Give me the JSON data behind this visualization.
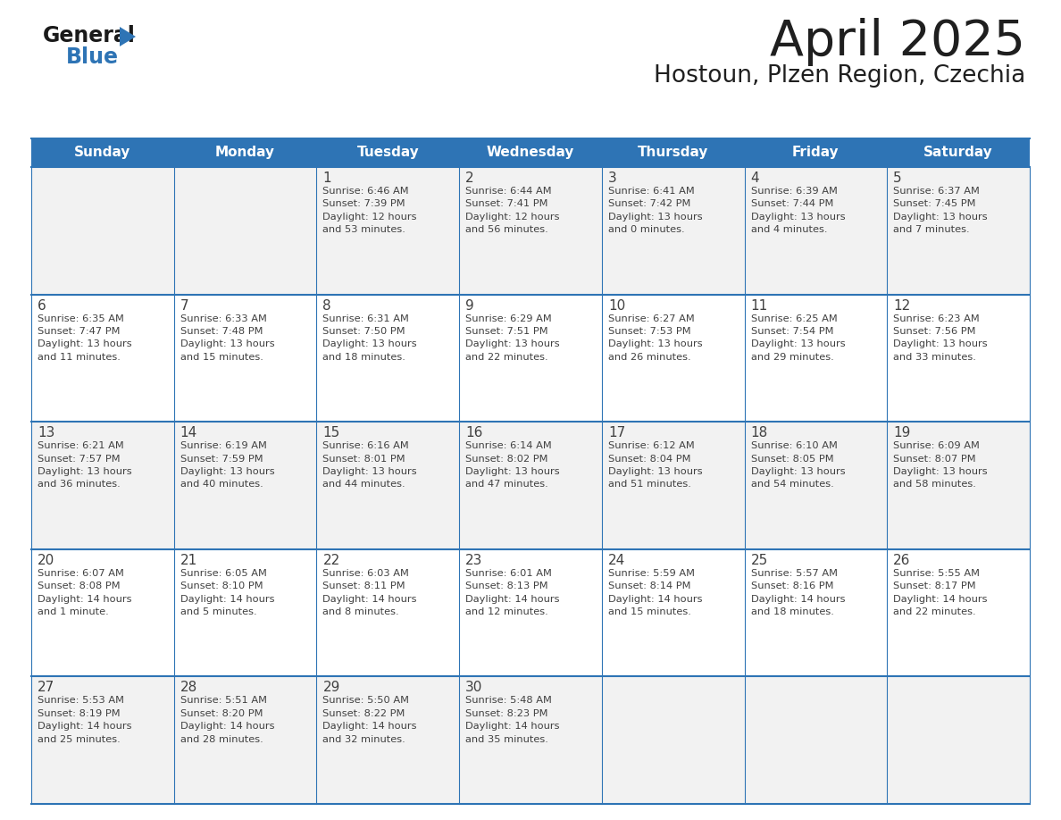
{
  "title": "April 2025",
  "subtitle": "Hostoun, Plzen Region, Czechia",
  "days_of_week": [
    "Sunday",
    "Monday",
    "Tuesday",
    "Wednesday",
    "Thursday",
    "Friday",
    "Saturday"
  ],
  "header_bg": "#2E74B5",
  "header_text_color": "#FFFFFF",
  "cell_bg_odd": "#F2F2F2",
  "cell_bg_even": "#FFFFFF",
  "border_color": "#2E74B5",
  "divider_color": "#2E74B5",
  "title_color": "#1F1F1F",
  "text_color": "#404040",
  "logo_black": "#1A1A1A",
  "logo_blue": "#2E74B5",
  "weeks": [
    [
      {
        "day": null,
        "info": null
      },
      {
        "day": null,
        "info": null
      },
      {
        "day": "1",
        "info": "Sunrise: 6:46 AM\nSunset: 7:39 PM\nDaylight: 12 hours\nand 53 minutes."
      },
      {
        "day": "2",
        "info": "Sunrise: 6:44 AM\nSunset: 7:41 PM\nDaylight: 12 hours\nand 56 minutes."
      },
      {
        "day": "3",
        "info": "Sunrise: 6:41 AM\nSunset: 7:42 PM\nDaylight: 13 hours\nand 0 minutes."
      },
      {
        "day": "4",
        "info": "Sunrise: 6:39 AM\nSunset: 7:44 PM\nDaylight: 13 hours\nand 4 minutes."
      },
      {
        "day": "5",
        "info": "Sunrise: 6:37 AM\nSunset: 7:45 PM\nDaylight: 13 hours\nand 7 minutes."
      }
    ],
    [
      {
        "day": "6",
        "info": "Sunrise: 6:35 AM\nSunset: 7:47 PM\nDaylight: 13 hours\nand 11 minutes."
      },
      {
        "day": "7",
        "info": "Sunrise: 6:33 AM\nSunset: 7:48 PM\nDaylight: 13 hours\nand 15 minutes."
      },
      {
        "day": "8",
        "info": "Sunrise: 6:31 AM\nSunset: 7:50 PM\nDaylight: 13 hours\nand 18 minutes."
      },
      {
        "day": "9",
        "info": "Sunrise: 6:29 AM\nSunset: 7:51 PM\nDaylight: 13 hours\nand 22 minutes."
      },
      {
        "day": "10",
        "info": "Sunrise: 6:27 AM\nSunset: 7:53 PM\nDaylight: 13 hours\nand 26 minutes."
      },
      {
        "day": "11",
        "info": "Sunrise: 6:25 AM\nSunset: 7:54 PM\nDaylight: 13 hours\nand 29 minutes."
      },
      {
        "day": "12",
        "info": "Sunrise: 6:23 AM\nSunset: 7:56 PM\nDaylight: 13 hours\nand 33 minutes."
      }
    ],
    [
      {
        "day": "13",
        "info": "Sunrise: 6:21 AM\nSunset: 7:57 PM\nDaylight: 13 hours\nand 36 minutes."
      },
      {
        "day": "14",
        "info": "Sunrise: 6:19 AM\nSunset: 7:59 PM\nDaylight: 13 hours\nand 40 minutes."
      },
      {
        "day": "15",
        "info": "Sunrise: 6:16 AM\nSunset: 8:01 PM\nDaylight: 13 hours\nand 44 minutes."
      },
      {
        "day": "16",
        "info": "Sunrise: 6:14 AM\nSunset: 8:02 PM\nDaylight: 13 hours\nand 47 minutes."
      },
      {
        "day": "17",
        "info": "Sunrise: 6:12 AM\nSunset: 8:04 PM\nDaylight: 13 hours\nand 51 minutes."
      },
      {
        "day": "18",
        "info": "Sunrise: 6:10 AM\nSunset: 8:05 PM\nDaylight: 13 hours\nand 54 minutes."
      },
      {
        "day": "19",
        "info": "Sunrise: 6:09 AM\nSunset: 8:07 PM\nDaylight: 13 hours\nand 58 minutes."
      }
    ],
    [
      {
        "day": "20",
        "info": "Sunrise: 6:07 AM\nSunset: 8:08 PM\nDaylight: 14 hours\nand 1 minute."
      },
      {
        "day": "21",
        "info": "Sunrise: 6:05 AM\nSunset: 8:10 PM\nDaylight: 14 hours\nand 5 minutes."
      },
      {
        "day": "22",
        "info": "Sunrise: 6:03 AM\nSunset: 8:11 PM\nDaylight: 14 hours\nand 8 minutes."
      },
      {
        "day": "23",
        "info": "Sunrise: 6:01 AM\nSunset: 8:13 PM\nDaylight: 14 hours\nand 12 minutes."
      },
      {
        "day": "24",
        "info": "Sunrise: 5:59 AM\nSunset: 8:14 PM\nDaylight: 14 hours\nand 15 minutes."
      },
      {
        "day": "25",
        "info": "Sunrise: 5:57 AM\nSunset: 8:16 PM\nDaylight: 14 hours\nand 18 minutes."
      },
      {
        "day": "26",
        "info": "Sunrise: 5:55 AM\nSunset: 8:17 PM\nDaylight: 14 hours\nand 22 minutes."
      }
    ],
    [
      {
        "day": "27",
        "info": "Sunrise: 5:53 AM\nSunset: 8:19 PM\nDaylight: 14 hours\nand 25 minutes."
      },
      {
        "day": "28",
        "info": "Sunrise: 5:51 AM\nSunset: 8:20 PM\nDaylight: 14 hours\nand 28 minutes."
      },
      {
        "day": "29",
        "info": "Sunrise: 5:50 AM\nSunset: 8:22 PM\nDaylight: 14 hours\nand 32 minutes."
      },
      {
        "day": "30",
        "info": "Sunrise: 5:48 AM\nSunset: 8:23 PM\nDaylight: 14 hours\nand 35 minutes."
      },
      {
        "day": null,
        "info": null
      },
      {
        "day": null,
        "info": null
      },
      {
        "day": null,
        "info": null
      }
    ]
  ]
}
